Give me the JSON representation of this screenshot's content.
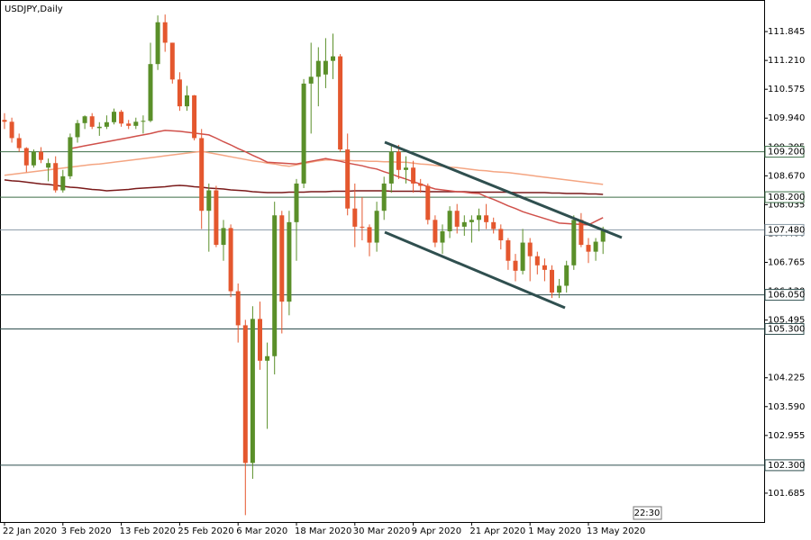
{
  "chart_data": {
    "type": "candlestick",
    "title": "USDJPY,Daily",
    "categories": [
      "22 Jan 2020",
      null,
      null,
      null,
      null,
      null,
      null,
      null,
      "3 Feb 2020",
      null,
      null,
      null,
      null,
      null,
      null,
      null,
      "13 Feb 2020",
      null,
      null,
      null,
      null,
      null,
      null,
      null,
      "25 Feb 2020",
      null,
      null,
      null,
      null,
      null,
      null,
      null,
      "6 Mar 2020",
      null,
      null,
      null,
      null,
      null,
      null,
      null,
      "18 Mar 2020",
      null,
      null,
      null,
      null,
      null,
      null,
      null,
      "30 Mar 2020",
      null,
      null,
      null,
      null,
      null,
      null,
      null,
      "9 Apr 2020",
      null,
      null,
      null,
      null,
      null,
      null,
      null,
      "21 Apr 2020",
      null,
      null,
      null,
      null,
      null,
      null,
      null,
      "1 May 2020",
      null,
      null,
      null,
      null,
      null,
      null,
      null,
      "13 May 2020",
      null,
      null
    ],
    "open": [
      109.9,
      109.86,
      109.5,
      109.28,
      108.9,
      109.2,
      108.85,
      108.95,
      108.35,
      108.66,
      109.52,
      109.83,
      109.98,
      109.72,
      109.75,
      109.85,
      110.08,
      109.82,
      109.77,
      109.86,
      109.88,
      111.13,
      112.05,
      111.6,
      110.79,
      110.2,
      110.44,
      109.5,
      107.9,
      108.35,
      107.15,
      107.52,
      106.13,
      105.38,
      102.35,
      105.52,
      104.6,
      104.7,
      107.8,
      105.9,
      107.65,
      108.5,
      110.7,
      110.85,
      110.9,
      111.2,
      111.3,
      109.25,
      107.95,
      107.55,
      107.54,
      107.2,
      107.9,
      108.5,
      109.2,
      108.8,
      108.85,
      108.5,
      108.45,
      107.7,
      107.2,
      107.45,
      107.9,
      107.55,
      107.65,
      107.7,
      107.8,
      107.65,
      107.5,
      107.25,
      106.8,
      106.58,
      107.2,
      106.9,
      106.7,
      106.6,
      106.1,
      106.25,
      106.7,
      107.7,
      107.15,
      107.0,
      107.22
    ],
    "high": [
      110.05,
      109.95,
      109.6,
      109.3,
      109.25,
      109.3,
      109.05,
      109.1,
      108.8,
      109.6,
      109.9,
      110.0,
      110.05,
      109.85,
      110.0,
      110.15,
      110.12,
      109.9,
      109.95,
      110.0,
      111.6,
      112.2,
      112.22,
      111.6,
      110.95,
      110.65,
      110.45,
      109.7,
      108.5,
      108.45,
      107.7,
      107.6,
      106.3,
      105.5,
      105.8,
      105.9,
      105.0,
      108.1,
      107.9,
      107.9,
      108.6,
      110.8,
      111.6,
      111.5,
      111.7,
      111.8,
      111.35,
      109.6,
      108.5,
      108.2,
      107.6,
      108.1,
      108.65,
      109.35,
      109.35,
      109.1,
      109.0,
      108.6,
      108.5,
      107.8,
      107.6,
      108.0,
      108.05,
      107.8,
      107.8,
      107.95,
      108.05,
      107.75,
      107.6,
      107.3,
      106.95,
      107.5,
      107.3,
      107.0,
      106.85,
      106.7,
      106.4,
      106.8,
      107.8,
      107.85,
      107.3,
      107.3,
      107.55
    ],
    "low": [
      109.7,
      109.4,
      109.2,
      108.75,
      108.85,
      108.95,
      108.55,
      108.3,
      108.3,
      108.6,
      109.4,
      109.7,
      109.7,
      109.55,
      109.7,
      109.8,
      109.75,
      109.7,
      109.7,
      109.6,
      109.85,
      111.0,
      111.4,
      110.7,
      110.1,
      110.1,
      109.45,
      107.5,
      107.0,
      107.1,
      106.8,
      106.0,
      105.0,
      101.2,
      102.0,
      104.4,
      103.1,
      104.3,
      105.2,
      105.6,
      106.8,
      108.4,
      109.6,
      110.2,
      110.6,
      110.8,
      109.2,
      107.8,
      107.1,
      107.25,
      106.9,
      107.0,
      107.7,
      108.3,
      108.6,
      108.5,
      108.3,
      108.3,
      107.6,
      107.1,
      106.95,
      107.3,
      107.4,
      107.35,
      107.2,
      107.45,
      107.5,
      107.4,
      107.05,
      106.6,
      106.35,
      106.5,
      106.35,
      106.5,
      106.35,
      105.98,
      105.98,
      106.1,
      106.6,
      107.1,
      106.75,
      106.8,
      106.95
    ],
    "close": [
      109.86,
      109.5,
      109.28,
      108.9,
      109.2,
      109.02,
      108.95,
      108.35,
      108.66,
      109.52,
      109.83,
      109.98,
      109.75,
      109.75,
      109.85,
      110.08,
      109.82,
      109.77,
      109.86,
      109.88,
      111.13,
      112.05,
      111.6,
      110.79,
      110.2,
      110.44,
      109.5,
      107.9,
      108.35,
      107.15,
      107.52,
      106.13,
      105.38,
      102.35,
      105.52,
      104.6,
      104.7,
      107.8,
      105.9,
      107.65,
      108.5,
      110.7,
      110.85,
      111.2,
      111.2,
      111.3,
      109.25,
      107.95,
      107.55,
      107.54,
      107.2,
      107.9,
      108.5,
      109.2,
      108.8,
      108.85,
      108.5,
      108.45,
      107.7,
      107.2,
      107.45,
      107.9,
      107.55,
      107.65,
      107.7,
      107.8,
      107.65,
      107.5,
      107.25,
      106.8,
      106.58,
      107.2,
      106.9,
      106.7,
      106.6,
      106.1,
      106.25,
      106.7,
      107.7,
      107.15,
      107.0,
      107.22,
      107.5
    ],
    "up_color": "#5a8f29",
    "down_color": "#e4572e",
    "series": [
      {
        "color": "#7a1a1a",
        "values": [
          108.58,
          108.56,
          108.55,
          108.53,
          108.51,
          108.49,
          108.48,
          108.46,
          108.44,
          108.42,
          108.41,
          108.39,
          108.37,
          108.36,
          108.34,
          108.35,
          108.36,
          108.37,
          108.39,
          108.4,
          108.41,
          108.42,
          108.43,
          108.45,
          108.46,
          108.45,
          108.43,
          108.42,
          108.4,
          108.39,
          108.38,
          108.36,
          108.35,
          108.34,
          108.32,
          108.31,
          108.3,
          108.3,
          108.3,
          108.31,
          108.31,
          108.31,
          108.32,
          108.32,
          108.32,
          108.33,
          108.33,
          108.33,
          108.34,
          108.34,
          108.34,
          108.34,
          108.34,
          108.33,
          108.33,
          108.33,
          108.33,
          108.33,
          108.32,
          108.32,
          108.32,
          108.32,
          108.32,
          108.32,
          108.31,
          108.31,
          108.31,
          108.31,
          108.31,
          108.31,
          108.3,
          108.3,
          108.3,
          108.3,
          108.3,
          108.29,
          108.29,
          108.28,
          108.28,
          108.28,
          108.27,
          108.27,
          108.26
        ]
      },
      {
        "color": "#f4a582",
        "values": [
          108.68,
          108.7,
          108.72,
          108.74,
          108.76,
          108.78,
          108.8,
          108.82,
          108.84,
          108.86,
          108.88,
          108.9,
          108.92,
          108.93,
          108.95,
          108.97,
          108.99,
          109.01,
          109.03,
          109.05,
          109.07,
          109.09,
          109.11,
          109.13,
          109.15,
          109.17,
          109.19,
          109.21,
          109.18,
          109.15,
          109.12,
          109.09,
          109.06,
          109.03,
          109.0,
          108.98,
          108.95,
          108.93,
          108.9,
          108.88,
          108.91,
          108.94,
          108.97,
          109.0,
          109.02,
          109.02,
          109.01,
          109.01,
          109.0,
          109.0,
          108.99,
          108.99,
          108.98,
          108.98,
          108.97,
          108.97,
          108.95,
          108.93,
          108.92,
          108.9,
          108.88,
          108.86,
          108.85,
          108.83,
          108.81,
          108.79,
          108.78,
          108.76,
          108.75,
          108.74,
          108.72,
          108.7,
          108.68,
          108.66,
          108.64,
          108.62,
          108.6,
          108.58,
          108.56,
          108.54,
          108.52,
          108.5,
          108.48
        ]
      },
      {
        "color": "#d0504a",
        "values": [
          null,
          null,
          null,
          null,
          null,
          null,
          null,
          null,
          null,
          109.27,
          109.3,
          109.33,
          109.36,
          109.39,
          109.42,
          109.45,
          109.48,
          109.51,
          109.54,
          109.57,
          109.6,
          109.64,
          109.67,
          109.66,
          109.65,
          109.63,
          109.61,
          109.59,
          109.57,
          109.5,
          109.42,
          109.35,
          109.27,
          109.2,
          109.12,
          109.05,
          108.97,
          108.96,
          108.95,
          108.94,
          108.93,
          108.96,
          108.99,
          109.02,
          109.05,
          109.02,
          108.99,
          108.95,
          108.92,
          108.89,
          108.85,
          108.82,
          108.76,
          108.71,
          108.65,
          108.6,
          108.54,
          108.49,
          108.43,
          108.38,
          108.36,
          108.34,
          108.32,
          108.31,
          108.29,
          108.28,
          108.21,
          108.15,
          108.08,
          108.01,
          107.95,
          107.88,
          107.83,
          107.78,
          107.73,
          107.68,
          107.63,
          107.62,
          107.61,
          107.6,
          107.59,
          107.67,
          107.75
        ]
      }
    ],
    "levels": [
      {
        "value": 109.2,
        "label": "109.200",
        "color": "#3c6e47"
      },
      {
        "value": 108.2,
        "label": "108.200",
        "color": "#3c6e47"
      },
      {
        "value": 107.48,
        "label": "107.480",
        "color": "#8a9aa6"
      },
      {
        "value": 106.05,
        "label": "106.050",
        "color": "#2f4f4f"
      },
      {
        "value": 105.3,
        "label": "105.300",
        "color": "#2f4f4f"
      },
      {
        "value": 102.3,
        "label": "102.300",
        "color": "#2f4f4f"
      }
    ],
    "ylim": [
      101.05,
      112.54
    ],
    "yticks": [
      111.845,
      {
        "value": 111.21,
        "label": "111.210"
      },
      110.575,
      {
        "value": 109.94,
        "label": "109.940"
      },
      109.305,
      {
        "value": 108.67,
        "label": "108.670"
      },
      108.035,
      {
        "value": 107.4,
        "label": "107.400"
      },
      106.765,
      {
        "value": 106.13,
        "label": "106.130"
      },
      105.495,
      104.225,
      {
        "value": 103.59,
        "label": "103.590"
      },
      102.955,
      {
        "value": 102.32,
        "label": "102.320"
      },
      101.685
    ],
    "timer": "22:30"
  }
}
